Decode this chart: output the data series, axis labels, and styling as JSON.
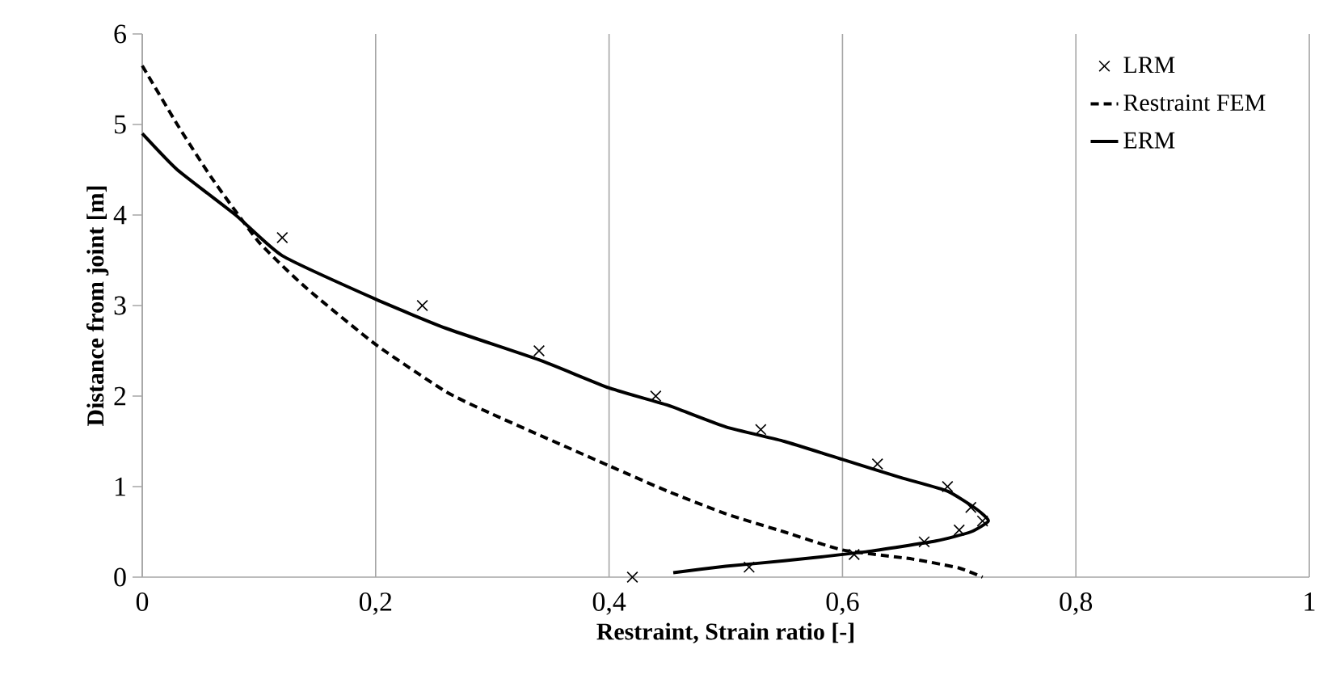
{
  "chart_data": {
    "type": "line",
    "xlabel": "Restraint, Strain ratio [-]",
    "ylabel": "Distance from joint [m]",
    "xlim": [
      0,
      1
    ],
    "ylim": [
      0,
      6
    ],
    "xticks": [
      0,
      {
        "value": 0.2,
        "label": "0,2"
      },
      {
        "value": 0.4,
        "label": "0,4"
      },
      {
        "value": 0.6,
        "label": "0,6"
      },
      {
        "value": 0.8,
        "label": "0,8"
      },
      1
    ],
    "yticks": [
      0,
      1,
      2,
      3,
      4,
      5,
      6
    ],
    "grid": "x",
    "legend": "top right",
    "series": [
      {
        "name": "LRM",
        "type": "scatter",
        "marker": "cross",
        "color": "#000000",
        "x": [
          0.12,
          0.24,
          0.34,
          0.44,
          0.53,
          0.63,
          0.69,
          0.71,
          0.72,
          0.7,
          0.67,
          0.61,
          0.52,
          0.42
        ],
        "values": [
          3.75,
          3.0,
          2.5,
          2.0,
          1.63,
          1.25,
          1.0,
          0.77,
          0.62,
          0.52,
          0.39,
          0.25,
          0.11,
          0.0
        ]
      },
      {
        "name": "Restraint FEM",
        "line_style": "dashed",
        "color": "#000000",
        "x": [
          0,
          0.03,
          0.06,
          0.1,
          0.14,
          0.2,
          0.26,
          0.3,
          0.4,
          0.45,
          0.5,
          0.55,
          0.6,
          0.66,
          0.7,
          0.72
        ],
        "values": [
          5.65,
          5.0,
          4.4,
          3.7,
          3.2,
          2.57,
          2.05,
          1.8,
          1.23,
          0.95,
          0.7,
          0.5,
          0.3,
          0.2,
          0.1,
          0.0
        ]
      },
      {
        "name": "ERM",
        "line_style": "solid",
        "color": "#000000",
        "x": [
          0,
          0.03,
          0.08,
          0.12,
          0.2,
          0.26,
          0.34,
          0.4,
          0.45,
          0.5,
          0.55,
          0.6,
          0.65,
          0.69,
          0.715,
          0.725,
          0.71,
          0.68,
          0.62,
          0.55,
          0.5,
          0.455
        ],
        "values": [
          4.9,
          4.5,
          4.0,
          3.55,
          3.07,
          2.75,
          2.4,
          2.09,
          1.9,
          1.66,
          1.5,
          1.3,
          1.1,
          0.95,
          0.75,
          0.62,
          0.5,
          0.4,
          0.28,
          0.18,
          0.12,
          0.05
        ]
      }
    ]
  }
}
